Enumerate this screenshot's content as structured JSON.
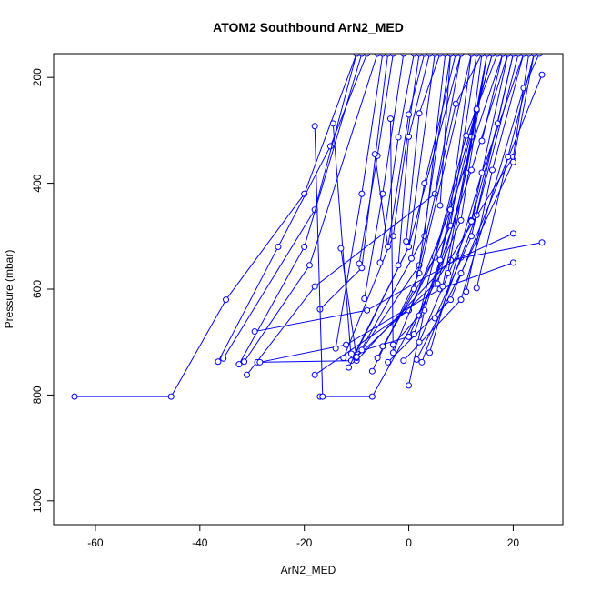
{
  "chart_data": {
    "type": "line",
    "title": "ATOM2 Southbound ArN2_MED",
    "xlabel": "ArN2_MED",
    "ylabel": "Pressure (mbar)",
    "xlim": [
      -68,
      29.5
    ],
    "ylim": [
      1045,
      155
    ],
    "y_reversed": true,
    "xticks": [
      -60,
      -40,
      -20,
      0,
      20
    ],
    "yticks": [
      200,
      400,
      600,
      800,
      1000
    ],
    "grid": false,
    "legend": "none",
    "color": "#0000ff",
    "series": [
      {
        "points": [
          [
            -64,
            803
          ],
          [
            -45.5,
            803
          ],
          [
            -35,
            620
          ],
          [
            -20,
            420
          ],
          [
            -10,
            155
          ]
        ]
      },
      {
        "points": [
          [
            -17,
            803
          ],
          [
            -7,
            803
          ],
          [
            5,
            590
          ],
          [
            8,
            450
          ],
          [
            12,
            155
          ]
        ]
      },
      {
        "points": [
          [
            -36.5,
            737
          ],
          [
            -25,
            520
          ],
          [
            -15,
            330
          ],
          [
            -8,
            155
          ]
        ]
      },
      {
        "points": [
          [
            -35.5,
            731
          ],
          [
            -18,
            450
          ],
          [
            -10,
            155
          ]
        ]
      },
      {
        "points": [
          [
            -32.5,
            742
          ],
          [
            -20,
            520
          ],
          [
            -9,
            155
          ]
        ]
      },
      {
        "points": [
          [
            -31.5,
            737
          ],
          [
            -19,
            555
          ],
          [
            -6,
            155
          ]
        ]
      },
      {
        "points": [
          [
            -31,
            762
          ],
          [
            -18,
            595
          ],
          [
            5,
            420
          ],
          [
            10,
            155
          ]
        ]
      },
      {
        "points": [
          [
            -29.5,
            680
          ],
          [
            -8,
            640
          ],
          [
            10,
            540
          ],
          [
            20,
            495
          ]
        ]
      },
      {
        "points": [
          [
            -29,
            738
          ],
          [
            -10,
            735
          ],
          [
            8,
            545
          ],
          [
            25.5,
            512
          ]
        ]
      },
      {
        "points": [
          [
            -28.5,
            738
          ],
          [
            -12,
            705
          ],
          [
            6,
            600
          ],
          [
            20,
            550
          ]
        ]
      },
      {
        "points": [
          [
            -18,
            762
          ],
          [
            0,
            640
          ],
          [
            8,
            480
          ],
          [
            13,
            155
          ]
        ]
      },
      {
        "points": [
          [
            -17,
            638
          ],
          [
            -9,
            560
          ],
          [
            -4,
            155
          ]
        ]
      },
      {
        "points": [
          [
            -18,
            292
          ],
          [
            -16.5,
            803
          ]
        ]
      },
      {
        "points": [
          [
            -14.5,
            287
          ],
          [
            -11,
            735
          ],
          [
            0,
            520
          ],
          [
            5,
            155
          ]
        ]
      },
      {
        "points": [
          [
            -14,
            712
          ],
          [
            -9,
            420
          ],
          [
            -5,
            155
          ]
        ]
      },
      {
        "points": [
          [
            -13,
            523
          ],
          [
            -10,
            730
          ],
          [
            3,
            500
          ],
          [
            7,
            155
          ]
        ]
      },
      {
        "points": [
          [
            -12.5,
            730
          ],
          [
            -3,
            500
          ],
          [
            2,
            155
          ]
        ]
      },
      {
        "points": [
          [
            -11.5,
            748
          ],
          [
            0,
            520
          ],
          [
            10,
            155
          ]
        ]
      },
      {
        "points": [
          [
            -11,
            722
          ],
          [
            0,
            690
          ],
          [
            10,
            470
          ],
          [
            15,
            155
          ]
        ]
      },
      {
        "points": [
          [
            -10,
            728
          ],
          [
            5,
            590
          ],
          [
            20,
            350
          ],
          [
            23,
            155
          ]
        ]
      },
      {
        "points": [
          [
            -9.5,
            552
          ],
          [
            -6,
            348
          ],
          [
            -3,
            155
          ]
        ]
      },
      {
        "points": [
          [
            -9,
            715
          ],
          [
            2,
            555
          ],
          [
            8,
            155
          ]
        ]
      },
      {
        "points": [
          [
            -8.5,
            618
          ],
          [
            -5,
            420
          ],
          [
            -1,
            155
          ]
        ]
      },
      {
        "points": [
          [
            -7,
            755
          ],
          [
            2,
            570
          ],
          [
            12,
            155
          ]
        ]
      },
      {
        "points": [
          [
            -6.5,
            345
          ],
          [
            -4,
            520
          ],
          [
            0,
            270
          ],
          [
            3,
            155
          ]
        ]
      },
      {
        "points": [
          [
            -6,
            730
          ],
          [
            1,
            600
          ],
          [
            9,
            250
          ],
          [
            14,
            155
          ]
        ]
      },
      {
        "points": [
          [
            -5.5,
            550
          ],
          [
            -2,
            313
          ],
          [
            1,
            155
          ]
        ]
      },
      {
        "points": [
          [
            -5,
            708
          ],
          [
            5,
            540
          ],
          [
            16,
            155
          ]
        ]
      },
      {
        "points": [
          [
            -4,
            738
          ],
          [
            8,
            620
          ],
          [
            25.5,
            195
          ]
        ]
      },
      {
        "points": [
          [
            -3.5,
            278
          ],
          [
            -3,
            720
          ],
          [
            8,
            450
          ],
          [
            18,
            155
          ]
        ]
      },
      {
        "points": [
          [
            -3,
            705
          ],
          [
            2,
            650
          ],
          [
            11,
            310
          ],
          [
            17,
            155
          ]
        ]
      },
      {
        "points": [
          [
            -2,
            555
          ],
          [
            0,
            312
          ],
          [
            4,
            155
          ]
        ]
      },
      {
        "points": [
          [
            -1,
            735
          ],
          [
            10,
            620
          ],
          [
            22,
            220
          ],
          [
            25,
            155
          ]
        ]
      },
      {
        "points": [
          [
            -0.5,
            510
          ],
          [
            2,
            268
          ],
          [
            6,
            155
          ]
        ]
      },
      {
        "points": [
          [
            0,
            782
          ],
          [
            3,
            640
          ],
          [
            12,
            375
          ],
          [
            19,
            155
          ]
        ]
      },
      {
        "points": [
          [
            0.5,
            542
          ],
          [
            3,
            400
          ],
          [
            9,
            155
          ]
        ]
      },
      {
        "points": [
          [
            1,
            685
          ],
          [
            6,
            545
          ],
          [
            13,
            262
          ],
          [
            16,
            155
          ]
        ]
      },
      {
        "points": [
          [
            1.5,
            733
          ],
          [
            10,
            570
          ],
          [
            20,
            360
          ],
          [
            24,
            155
          ]
        ]
      },
      {
        "points": [
          [
            2,
            700
          ],
          [
            12,
            470
          ],
          [
            19,
            155
          ]
        ]
      },
      {
        "points": [
          [
            2.5,
            738
          ],
          [
            13,
            460
          ],
          [
            21,
            155
          ]
        ]
      },
      {
        "points": [
          [
            4,
            720
          ],
          [
            14,
            380
          ],
          [
            22,
            155
          ]
        ]
      },
      {
        "points": [
          [
            5,
            655
          ],
          [
            12,
            500
          ],
          [
            20,
            155
          ]
        ]
      },
      {
        "points": [
          [
            5.5,
            590
          ],
          [
            11,
            380
          ],
          [
            15,
            155
          ]
        ]
      },
      {
        "points": [
          [
            6,
            442
          ],
          [
            8,
            155
          ]
        ]
      },
      {
        "points": [
          [
            6.5,
            595
          ],
          [
            12,
            312
          ],
          [
            14,
            155
          ]
        ]
      },
      {
        "points": [
          [
            7.5,
            570
          ],
          [
            13,
            260
          ],
          [
            15,
            155
          ]
        ]
      },
      {
        "points": [
          [
            11,
            605
          ],
          [
            16,
            375
          ],
          [
            22,
            155
          ]
        ]
      },
      {
        "points": [
          [
            12,
            472
          ],
          [
            17,
            287
          ],
          [
            20,
            155
          ]
        ]
      },
      {
        "points": [
          [
            13,
            598
          ],
          [
            19,
            350
          ],
          [
            24,
            155
          ]
        ]
      },
      {
        "points": [
          [
            14,
            320
          ],
          [
            18,
            155
          ]
        ]
      }
    ]
  }
}
